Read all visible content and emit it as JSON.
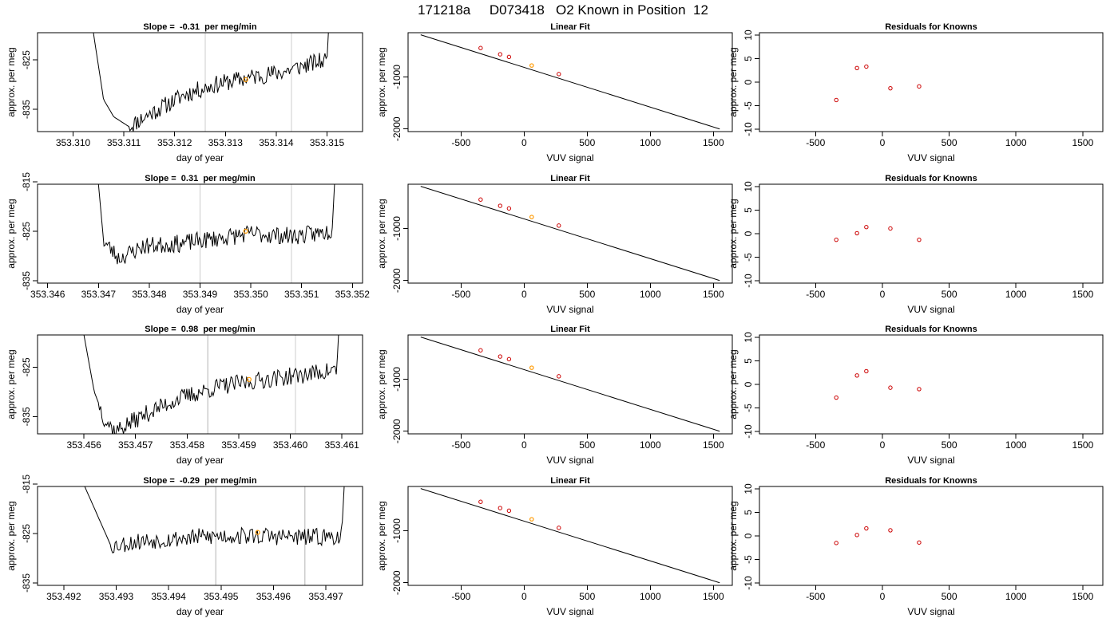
{
  "page": {
    "title": "171218a     D073418   O2 Known in Position  12"
  },
  "colors": {
    "trace": "#000000",
    "point": "#cc0000",
    "highlight": "#ff9900",
    "marker_line": "#cccccc"
  },
  "chart_data": [
    {
      "type": "line",
      "title": "Slope =  -0.31  per meg/min",
      "xlabel": "day of year",
      "ylabel": "approx. per meg",
      "xlim": [
        353.3093,
        353.3157
      ],
      "ylim": [
        -839.5,
        -819.5
      ],
      "xticks": [
        "353.310",
        "353.311",
        "353.312",
        "353.313",
        "353.314",
        "353.315"
      ],
      "xtick_values": [
        353.31,
        353.311,
        353.312,
        353.313,
        353.314,
        353.315
      ],
      "yticks": [
        "-835",
        "-825"
      ],
      "ytick_values": [
        -835,
        -825
      ],
      "vertical_markers": [
        353.3126,
        353.3143
      ],
      "highlight_point": {
        "x": 353.3134,
        "y": -829.0
      },
      "start_x": 353.3104,
      "end_x": 353.3152,
      "rise_start": 353.315,
      "noise_from": 353.3111,
      "baseline": [
        [
          353.3104,
          -819.5
        ],
        [
          353.3106,
          -833.0
        ],
        [
          353.3108,
          -836.5
        ],
        [
          353.3111,
          -838.5
        ],
        [
          353.3115,
          -836.0
        ],
        [
          353.3122,
          -832.0
        ],
        [
          353.3128,
          -830.0
        ],
        [
          353.3135,
          -828.5
        ],
        [
          353.3141,
          -827.5
        ],
        [
          353.3146,
          -826.0
        ],
        [
          353.315,
          -825.0
        ]
      ],
      "noise_amplitude": 1.8,
      "seed": 11
    },
    {
      "type": "scatter",
      "title": "Linear Fit",
      "xlabel": "VUV signal",
      "ylabel": "approx. per meg",
      "xlim": [
        -920,
        1650
      ],
      "ylim": [
        -2050,
        -150
      ],
      "xticks": [
        "-500",
        "0",
        "500",
        "1000",
        "1500"
      ],
      "xtick_values": [
        -500,
        0,
        500,
        1000,
        1500
      ],
      "yticks": [
        "-2000",
        "-1000"
      ],
      "ytick_values": [
        -2000,
        -1000
      ],
      "fit_line": [
        [
          -820,
          -190
        ],
        [
          1550,
          -2000
        ]
      ],
      "points_x": [
        -345,
        -190,
        -120,
        60,
        275
      ],
      "points_y": [
        -445,
        -565,
        -615,
        -780,
        -945
      ],
      "highlight_index": 3
    },
    {
      "type": "scatter",
      "title": "Residuals for Knowns",
      "xlabel": "VUV signal",
      "ylabel": "approx. per meg",
      "xlim": [
        -920,
        1650
      ],
      "ylim": [
        -10.5,
        10.5
      ],
      "xticks": [
        "-500",
        "0",
        "500",
        "1000",
        "1500"
      ],
      "xtick_values": [
        -500,
        0,
        500,
        1000,
        1500
      ],
      "yticks": [
        "-10",
        "-5",
        "0",
        "5",
        "10"
      ],
      "ytick_values": [
        -10,
        -5,
        0,
        5,
        10
      ],
      "points_x": [
        -345,
        -190,
        -120,
        60,
        275
      ],
      "points_y": [
        -3.8,
        3.0,
        3.3,
        -1.3,
        -0.9
      ]
    },
    {
      "type": "line",
      "title": "Slope =  0.31  per meg/min",
      "xlabel": "day of year",
      "ylabel": "approx. per meg",
      "xlim": [
        353.3458,
        353.3522
      ],
      "ylim": [
        -835.5,
        -815.5
      ],
      "xticks": [
        "353.346",
        "353.347",
        "353.348",
        "353.349",
        "353.350",
        "353.351",
        "353.352"
      ],
      "xtick_values": [
        353.346,
        353.347,
        353.348,
        353.349,
        353.35,
        353.351,
        353.352
      ],
      "yticks": [
        "-835",
        "-825",
        "-815"
      ],
      "ytick_values": [
        -835,
        -825,
        -815
      ],
      "vertical_markers": [
        353.349,
        353.3508
      ],
      "highlight_point": {
        "x": 353.3499,
        "y": -825.0
      },
      "start_x": 353.347,
      "end_x": 353.3518,
      "rise_start": 353.3516,
      "noise_from": 353.3471,
      "baseline": [
        [
          353.347,
          -815.5
        ],
        [
          353.3471,
          -827.0
        ],
        [
          353.3474,
          -830.5
        ],
        [
          353.3479,
          -828.0
        ],
        [
          353.3486,
          -827.5
        ],
        [
          353.3493,
          -826.5
        ],
        [
          353.35,
          -825.5
        ],
        [
          353.3508,
          -826.0
        ],
        [
          353.3513,
          -825.5
        ],
        [
          353.3516,
          -825.0
        ]
      ],
      "noise_amplitude": 1.8,
      "seed": 23
    },
    {
      "type": "scatter",
      "title": "Linear Fit",
      "xlabel": "VUV signal",
      "ylabel": "approx. per meg",
      "xlim": [
        -920,
        1650
      ],
      "ylim": [
        -2050,
        -150
      ],
      "xticks": [
        "-500",
        "0",
        "500",
        "1000",
        "1500"
      ],
      "xtick_values": [
        -500,
        0,
        500,
        1000,
        1500
      ],
      "yticks": [
        "-2000",
        "-1000"
      ],
      "ytick_values": [
        -2000,
        -1000
      ],
      "fit_line": [
        [
          -820,
          -190
        ],
        [
          1550,
          -2000
        ]
      ],
      "points_x": [
        -345,
        -190,
        -120,
        60,
        275
      ],
      "points_y": [
        -445,
        -565,
        -615,
        -780,
        -945
      ],
      "highlight_index": 3
    },
    {
      "type": "scatter",
      "title": "Residuals for Knowns",
      "xlabel": "VUV signal",
      "ylabel": "approx. per meg",
      "xlim": [
        -920,
        1650
      ],
      "ylim": [
        -10.5,
        10.5
      ],
      "xticks": [
        "-500",
        "0",
        "500",
        "1000",
        "1500"
      ],
      "xtick_values": [
        -500,
        0,
        500,
        1000,
        1500
      ],
      "yticks": [
        "-10",
        "-5",
        "0",
        "5",
        "10"
      ],
      "ytick_values": [
        -10,
        -5,
        0,
        5,
        10
      ],
      "points_x": [
        -345,
        -190,
        -120,
        60,
        275
      ],
      "points_y": [
        -1.3,
        0.1,
        1.4,
        1.1,
        -1.3
      ]
    },
    {
      "type": "line",
      "title": "Slope =  0.98  per meg/min",
      "xlabel": "day of year",
      "ylabel": "approx. per meg",
      "xlim": [
        353.4551,
        353.4614
      ],
      "ylim": [
        -838.5,
        -818.5
      ],
      "xticks": [
        "353.456",
        "353.457",
        "353.458",
        "353.459",
        "353.460",
        "353.461"
      ],
      "xtick_values": [
        353.456,
        353.457,
        353.458,
        353.459,
        353.46,
        353.461
      ],
      "yticks": [
        "-835",
        "-825"
      ],
      "ytick_values": [
        -835,
        -825
      ],
      "vertical_markers": [
        353.4584,
        353.4601
      ],
      "highlight_point": {
        "x": 353.4592,
        "y": -827.5
      },
      "start_x": 353.456,
      "end_x": 353.4611,
      "rise_start": 353.4609,
      "noise_from": 353.4563,
      "baseline": [
        [
          353.456,
          -818.5
        ],
        [
          353.4562,
          -830.0
        ],
        [
          353.4564,
          -835.5
        ],
        [
          353.4566,
          -838.0
        ],
        [
          353.4572,
          -834.5
        ],
        [
          353.4578,
          -831.5
        ],
        [
          353.4586,
          -829.0
        ],
        [
          353.4595,
          -827.5
        ],
        [
          353.4603,
          -826.5
        ],
        [
          353.4609,
          -825.5
        ]
      ],
      "noise_amplitude": 1.8,
      "seed": 37
    },
    {
      "type": "scatter",
      "title": "Linear Fit",
      "xlabel": "VUV signal",
      "ylabel": "approx. per meg",
      "xlim": [
        -920,
        1650
      ],
      "ylim": [
        -2050,
        -150
      ],
      "xticks": [
        "-500",
        "0",
        "500",
        "1000",
        "1500"
      ],
      "xtick_values": [
        -500,
        0,
        500,
        1000,
        1500
      ],
      "yticks": [
        "-2000",
        "-1000"
      ],
      "ytick_values": [
        -2000,
        -1000
      ],
      "fit_line": [
        [
          -820,
          -190
        ],
        [
          1550,
          -2000
        ]
      ],
      "points_x": [
        -345,
        -190,
        -120,
        60,
        275
      ],
      "points_y": [
        -445,
        -565,
        -615,
        -780,
        -945
      ],
      "highlight_index": 3
    },
    {
      "type": "scatter",
      "title": "Residuals for Knowns",
      "xlabel": "VUV signal",
      "ylabel": "approx. per meg",
      "xlim": [
        -920,
        1650
      ],
      "ylim": [
        -10.5,
        10.5
      ],
      "xticks": [
        "-500",
        "0",
        "500",
        "1000",
        "1500"
      ],
      "xtick_values": [
        -500,
        0,
        500,
        1000,
        1500
      ],
      "yticks": [
        "-10",
        "-5",
        "0",
        "5",
        "10"
      ],
      "ytick_values": [
        -10,
        -5,
        0,
        5,
        10
      ],
      "points_x": [
        -345,
        -190,
        -120,
        60,
        275
      ],
      "points_y": [
        -2.8,
        1.9,
        2.8,
        -0.7,
        -1.0
      ]
    },
    {
      "type": "line",
      "title": "Slope =  -0.29  per meg/min",
      "xlabel": "day of year",
      "ylabel": "approx. per meg",
      "xlim": [
        353.4915,
        353.4977
      ],
      "ylim": [
        -835.5,
        -815.5
      ],
      "xticks": [
        "353.492",
        "353.493",
        "353.494",
        "353.495",
        "353.496",
        "353.497"
      ],
      "xtick_values": [
        353.492,
        353.493,
        353.494,
        353.495,
        353.496,
        353.497
      ],
      "yticks": [
        "-835",
        "-825",
        "-815"
      ],
      "ytick_values": [
        -835,
        -825,
        -815
      ],
      "vertical_markers": [
        353.4949,
        353.4966
      ],
      "highlight_point": {
        "x": 353.4957,
        "y": -824.8
      },
      "start_x": 353.4924,
      "end_x": 353.4975,
      "rise_start": 353.4973,
      "noise_from": 353.4929,
      "baseline": [
        [
          353.4924,
          -815.5
        ],
        [
          353.4929,
          -827.5
        ],
        [
          353.4935,
          -826.5
        ],
        [
          353.4942,
          -826.0
        ],
        [
          353.495,
          -825.5
        ],
        [
          353.4958,
          -825.5
        ],
        [
          353.4966,
          -825.8
        ],
        [
          353.4973,
          -825.5
        ]
      ],
      "noise_amplitude": 1.8,
      "seed": 53
    },
    {
      "type": "scatter",
      "title": "Linear Fit",
      "xlabel": "VUV signal",
      "ylabel": "approx. per meg",
      "xlim": [
        -920,
        1650
      ],
      "ylim": [
        -2050,
        -150
      ],
      "xticks": [
        "-500",
        "0",
        "500",
        "1000",
        "1500"
      ],
      "xtick_values": [
        -500,
        0,
        500,
        1000,
        1500
      ],
      "yticks": [
        "-2000",
        "-1000"
      ],
      "ytick_values": [
        -2000,
        -1000
      ],
      "fit_line": [
        [
          -820,
          -190
        ],
        [
          1550,
          -2000
        ]
      ],
      "points_x": [
        -345,
        -190,
        -120,
        60,
        275
      ],
      "points_y": [
        -445,
        -565,
        -615,
        -780,
        -945
      ],
      "highlight_index": 3
    },
    {
      "type": "scatter",
      "title": "Residuals for Knowns",
      "xlabel": "VUV signal",
      "ylabel": "approx. per meg",
      "xlim": [
        -920,
        1650
      ],
      "ylim": [
        -10.5,
        10.5
      ],
      "xticks": [
        "-500",
        "0",
        "500",
        "1000",
        "1500"
      ],
      "xtick_values": [
        -500,
        0,
        500,
        1000,
        1500
      ],
      "yticks": [
        "-10",
        "-5",
        "0",
        "5",
        "10"
      ],
      "ytick_values": [
        -10,
        -5,
        0,
        5,
        10
      ],
      "points_x": [
        -345,
        -190,
        -120,
        60,
        275
      ],
      "points_y": [
        -1.5,
        0.2,
        1.6,
        1.2,
        -1.4
      ]
    }
  ]
}
